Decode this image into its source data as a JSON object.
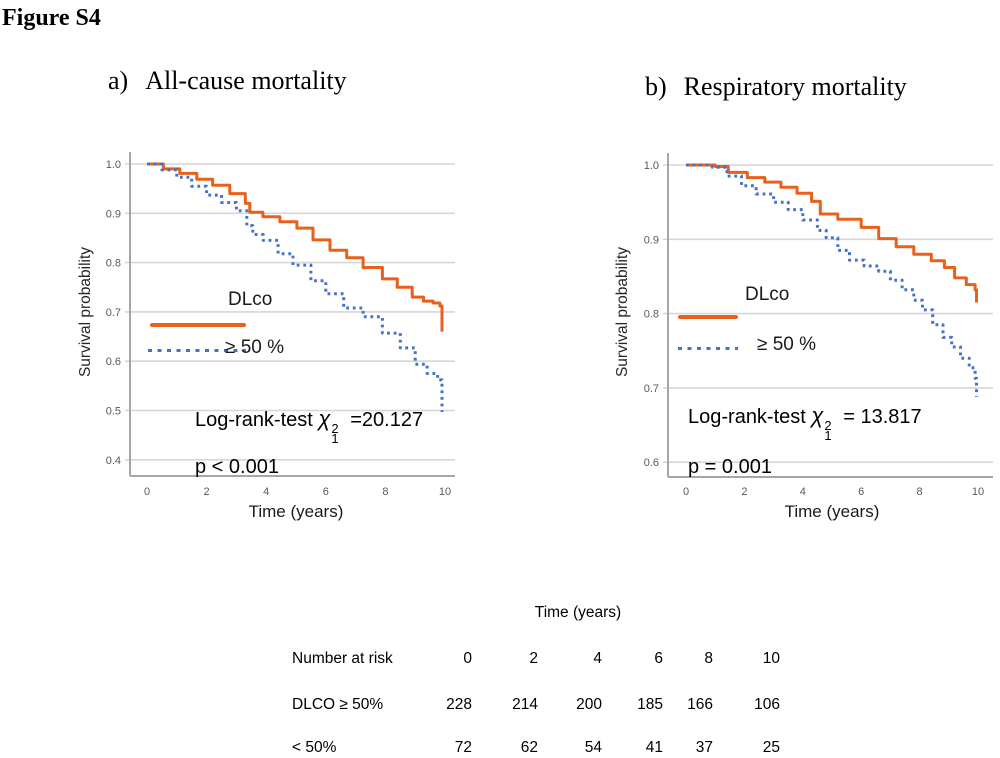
{
  "figure_label": "Figure S4",
  "colors": {
    "solid_series": "#E8611C",
    "dotted_series": "#4472C4",
    "gridline": "#D6D6D6",
    "axis": "#A6A6A6",
    "tick_label": "#595959"
  },
  "panels": [
    {
      "label_prefix": "a)",
      "title": "All-cause mortality",
      "ylabel": "Survival probability",
      "xlabel": "Time (years)",
      "legend_group": "DLco",
      "legend_dotted": "≥ 50 %",
      "stats": {
        "prefix": "Log-rank-test",
        "chi": "χ",
        "sup": "2",
        "sub": "1",
        "eq": "=20.127"
      },
      "p_value": "p < 0.001"
    },
    {
      "label_prefix": "b)",
      "title": "Respiratory mortality",
      "ylabel": "Survival probability",
      "xlabel": "Time (years)",
      "legend_group": "DLco",
      "legend_dotted": "≥ 50 %",
      "stats": {
        "prefix": "Log-rank-test",
        "chi": "χ",
        "sup": "2",
        "sub": "1",
        "eq": "= 13.817"
      },
      "p_value": "p = 0.001"
    }
  ],
  "chart_data": [
    {
      "type": "line",
      "subtype": "kaplan-meier-step",
      "title": "All-cause mortality",
      "xlabel": "Time (years)",
      "ylabel": "Survival probability",
      "xticks": [
        0,
        2,
        4,
        6,
        8,
        10
      ],
      "yticks": [
        1.0,
        0.9,
        0.8,
        0.7,
        0.6,
        0.5,
        0.4
      ],
      "xlim": [
        0,
        10
      ],
      "ylim": [
        0.37,
        1.0
      ],
      "grid": true,
      "legend_position": "inside-left",
      "annotations": [
        "Log-rank-test χ1² =20.127",
        "p < 0.001"
      ],
      "series": [
        {
          "name": "DLco ≥ 50 %",
          "style": "solid",
          "color": "#E8611C",
          "points": [
            [
              0,
              1.0
            ],
            [
              0.55,
              0.99
            ],
            [
              1.1,
              0.981
            ],
            [
              1.67,
              0.969
            ],
            [
              2.2,
              0.957
            ],
            [
              2.78,
              0.94
            ],
            [
              3.3,
              0.92
            ],
            [
              3.45,
              0.902
            ],
            [
              3.89,
              0.893
            ],
            [
              4.46,
              0.883
            ],
            [
              5.03,
              0.87
            ],
            [
              5.57,
              0.846
            ],
            [
              6.14,
              0.825
            ],
            [
              6.7,
              0.81
            ],
            [
              7.25,
              0.79
            ],
            [
              7.9,
              0.767
            ],
            [
              8.4,
              0.75
            ],
            [
              8.9,
              0.73
            ],
            [
              9.28,
              0.722
            ],
            [
              9.6,
              0.718
            ],
            [
              9.83,
              0.712
            ],
            [
              9.9,
              0.66
            ]
          ]
        },
        {
          "name": "DLco < 50 %",
          "style": "dotted",
          "color": "#4472C4",
          "points": [
            [
              0,
              1.0
            ],
            [
              0.5,
              0.988
            ],
            [
              1.0,
              0.973
            ],
            [
              1.5,
              0.955
            ],
            [
              2.0,
              0.937
            ],
            [
              2.5,
              0.922
            ],
            [
              3.0,
              0.905
            ],
            [
              3.35,
              0.875
            ],
            [
              3.55,
              0.857
            ],
            [
              3.9,
              0.845
            ],
            [
              4.4,
              0.818
            ],
            [
              4.9,
              0.795
            ],
            [
              5.5,
              0.763
            ],
            [
              6.0,
              0.737
            ],
            [
              6.6,
              0.708
            ],
            [
              7.25,
              0.69
            ],
            [
              7.9,
              0.657
            ],
            [
              8.5,
              0.627
            ],
            [
              9.0,
              0.594
            ],
            [
              9.4,
              0.575
            ],
            [
              9.75,
              0.562
            ],
            [
              9.9,
              0.497
            ]
          ]
        }
      ]
    },
    {
      "type": "line",
      "subtype": "kaplan-meier-step",
      "title": "Respiratory mortality",
      "xlabel": "Time (years)",
      "ylabel": "Survival probability",
      "xticks": [
        0,
        2,
        4,
        6,
        8,
        10
      ],
      "yticks": [
        1.0,
        0.9,
        0.8,
        0.7,
        0.6
      ],
      "xlim": [
        0,
        10
      ],
      "ylim": [
        0.58,
        1.0
      ],
      "grid": true,
      "legend_position": "inside-left",
      "annotations": [
        "Log-rank-test χ1² = 13.817",
        "p = 0.001"
      ],
      "series": [
        {
          "name": "DLco ≥ 50 %",
          "style": "solid",
          "color": "#E8611C",
          "points": [
            [
              0,
              1.0
            ],
            [
              1.0,
              0.998
            ],
            [
              1.45,
              0.99
            ],
            [
              2.1,
              0.983
            ],
            [
              2.7,
              0.977
            ],
            [
              3.25,
              0.97
            ],
            [
              3.8,
              0.962
            ],
            [
              4.3,
              0.951
            ],
            [
              4.6,
              0.934
            ],
            [
              5.2,
              0.927
            ],
            [
              6.0,
              0.916
            ],
            [
              6.6,
              0.901
            ],
            [
              7.2,
              0.89
            ],
            [
              7.8,
              0.88
            ],
            [
              8.4,
              0.871
            ],
            [
              8.85,
              0.862
            ],
            [
              9.2,
              0.848
            ],
            [
              9.6,
              0.839
            ],
            [
              9.9,
              0.832
            ],
            [
              9.95,
              0.815
            ]
          ]
        },
        {
          "name": "DLco < 50 %",
          "style": "dotted",
          "color": "#4472C4",
          "points": [
            [
              0,
              1.0
            ],
            [
              0.9,
              0.997
            ],
            [
              1.4,
              0.985
            ],
            [
              1.9,
              0.972
            ],
            [
              2.4,
              0.961
            ],
            [
              3.0,
              0.95
            ],
            [
              3.5,
              0.94
            ],
            [
              4.0,
              0.926
            ],
            [
              4.5,
              0.912
            ],
            [
              4.8,
              0.902
            ],
            [
              5.2,
              0.885
            ],
            [
              5.6,
              0.872
            ],
            [
              6.1,
              0.864
            ],
            [
              6.6,
              0.857
            ],
            [
              7.0,
              0.845
            ],
            [
              7.4,
              0.832
            ],
            [
              7.8,
              0.818
            ],
            [
              8.1,
              0.805
            ],
            [
              8.45,
              0.785
            ],
            [
              8.8,
              0.768
            ],
            [
              9.1,
              0.755
            ],
            [
              9.4,
              0.74
            ],
            [
              9.7,
              0.727
            ],
            [
              9.9,
              0.713
            ],
            [
              9.95,
              0.688
            ]
          ]
        }
      ]
    }
  ],
  "risk_table": {
    "header": "Time (years)",
    "rows": [
      {
        "label": "Number at risk",
        "values": [
          "0",
          "2",
          "4",
          "6",
          "8",
          "10"
        ]
      },
      {
        "label": "DLCO ≥ 50%",
        "values": [
          "228",
          "214",
          "200",
          "185",
          "166",
          "106"
        ]
      },
      {
        "label": "< 50%",
        "values": [
          "72",
          "62",
          "54",
          "41",
          "37",
          "25"
        ]
      }
    ]
  }
}
